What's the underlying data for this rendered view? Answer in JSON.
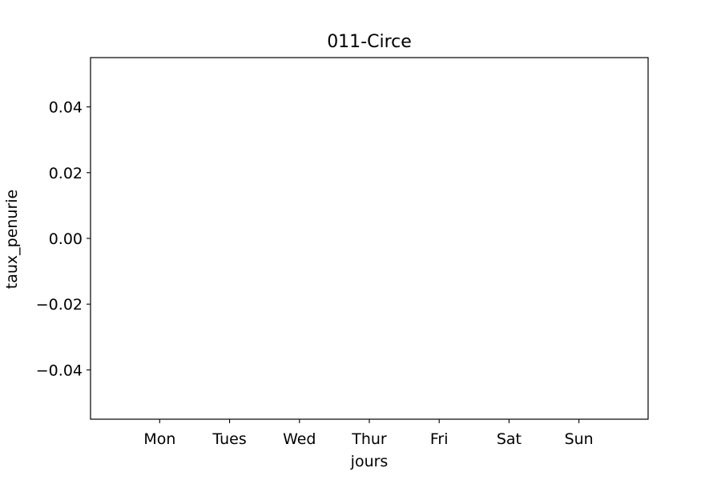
{
  "chart_data": {
    "type": "bar",
    "title": "011-Circe",
    "xlabel": "jours",
    "ylabel": "taux_penurie",
    "categories": [
      "Mon",
      "Tues",
      "Wed",
      "Thur",
      "Fri",
      "Sat",
      "Sun"
    ],
    "values": [
      0,
      0,
      0,
      0,
      0,
      0,
      0
    ],
    "y_ticks": [
      0.04,
      0.02,
      0.0,
      -0.02,
      -0.04
    ],
    "y_tick_labels": [
      "0.04",
      "0.02",
      "0.00",
      "−0.02",
      "−0.04"
    ],
    "ylim": [
      -0.055,
      0.055
    ],
    "grid": false,
    "colors": {
      "axis": "#000000",
      "background": "#ffffff"
    }
  }
}
